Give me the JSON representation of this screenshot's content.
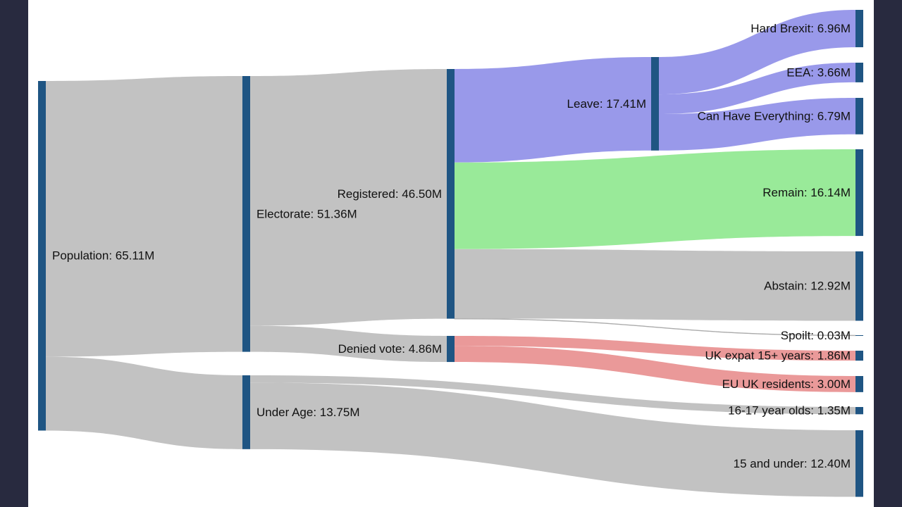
{
  "chart_data": {
    "type": "sankey",
    "units": "M",
    "colors": {
      "node": "#1f5583",
      "default_link": "#c2c2c2",
      "leave": "#9999ea",
      "remain": "#99ea99",
      "denied": "#ea9999",
      "page_background": "#282a3f",
      "chart_background": "#ffffff"
    },
    "nodes": [
      {
        "id": "population",
        "label": "Population: 65.11M",
        "name": "Population",
        "value": 65.11
      },
      {
        "id": "electorate",
        "label": "Electorate: 51.36M",
        "name": "Electorate",
        "value": 51.36
      },
      {
        "id": "under_age",
        "label": "Under Age: 13.75M",
        "name": "Under Age",
        "value": 13.75
      },
      {
        "id": "registered",
        "label": "Registered: 46.50M",
        "name": "Registered",
        "value": 46.5
      },
      {
        "id": "denied_vote",
        "label": "Denied vote: 4.86M",
        "name": "Denied vote",
        "value": 4.86
      },
      {
        "id": "leave",
        "label": "Leave: 17.41M",
        "name": "Leave",
        "value": 17.41
      },
      {
        "id": "hard_brexit",
        "label": "Hard Brexit: 6.96M",
        "name": "Hard Brexit",
        "value": 6.96
      },
      {
        "id": "eea",
        "label": "EEA: 3.66M",
        "name": "EEA",
        "value": 3.66
      },
      {
        "id": "can_have_everything",
        "label": "Can Have Everything: 6.79M",
        "name": "Can Have Everything",
        "value": 6.79
      },
      {
        "id": "remain",
        "label": "Remain: 16.14M",
        "name": "Remain",
        "value": 16.14
      },
      {
        "id": "abstain",
        "label": "Abstain: 12.92M",
        "name": "Abstain",
        "value": 12.92
      },
      {
        "id": "spoilt",
        "label": "Spoilt: 0.03M",
        "name": "Spoilt",
        "value": 0.03
      },
      {
        "id": "uk_expat",
        "label": "UK expat 15+ years: 1.86M",
        "name": "UK expat 15+ years",
        "value": 1.86
      },
      {
        "id": "eu_uk_residents",
        "label": "EU UK residents: 3.00M",
        "name": "EU UK residents",
        "value": 3.0
      },
      {
        "id": "age_16_17",
        "label": "16-17 year olds: 1.35M",
        "name": "16-17 year olds",
        "value": 1.35
      },
      {
        "id": "under_15",
        "label": "15 and under: 12.40M",
        "name": "15 and under",
        "value": 12.4
      }
    ],
    "links": [
      {
        "source": "population",
        "target": "electorate",
        "value": 51.36,
        "color": "default_link"
      },
      {
        "source": "population",
        "target": "under_age",
        "value": 13.75,
        "color": "default_link"
      },
      {
        "source": "electorate",
        "target": "registered",
        "value": 46.5,
        "color": "default_link"
      },
      {
        "source": "electorate",
        "target": "denied_vote",
        "value": 4.86,
        "color": "default_link"
      },
      {
        "source": "registered",
        "target": "leave",
        "value": 17.41,
        "color": "leave"
      },
      {
        "source": "registered",
        "target": "remain",
        "value": 16.14,
        "color": "remain"
      },
      {
        "source": "registered",
        "target": "abstain",
        "value": 12.92,
        "color": "default_link"
      },
      {
        "source": "registered",
        "target": "spoilt",
        "value": 0.03,
        "color": "default_link"
      },
      {
        "source": "leave",
        "target": "hard_brexit",
        "value": 6.96,
        "color": "leave"
      },
      {
        "source": "leave",
        "target": "eea",
        "value": 3.66,
        "color": "leave"
      },
      {
        "source": "leave",
        "target": "can_have_everything",
        "value": 6.79,
        "color": "leave"
      },
      {
        "source": "denied_vote",
        "target": "uk_expat",
        "value": 1.86,
        "color": "denied"
      },
      {
        "source": "denied_vote",
        "target": "eu_uk_residents",
        "value": 3.0,
        "color": "denied"
      },
      {
        "source": "under_age",
        "target": "age_16_17",
        "value": 1.35,
        "color": "default_link"
      },
      {
        "source": "under_age",
        "target": "under_15",
        "value": 12.4,
        "color": "default_link"
      }
    ]
  }
}
